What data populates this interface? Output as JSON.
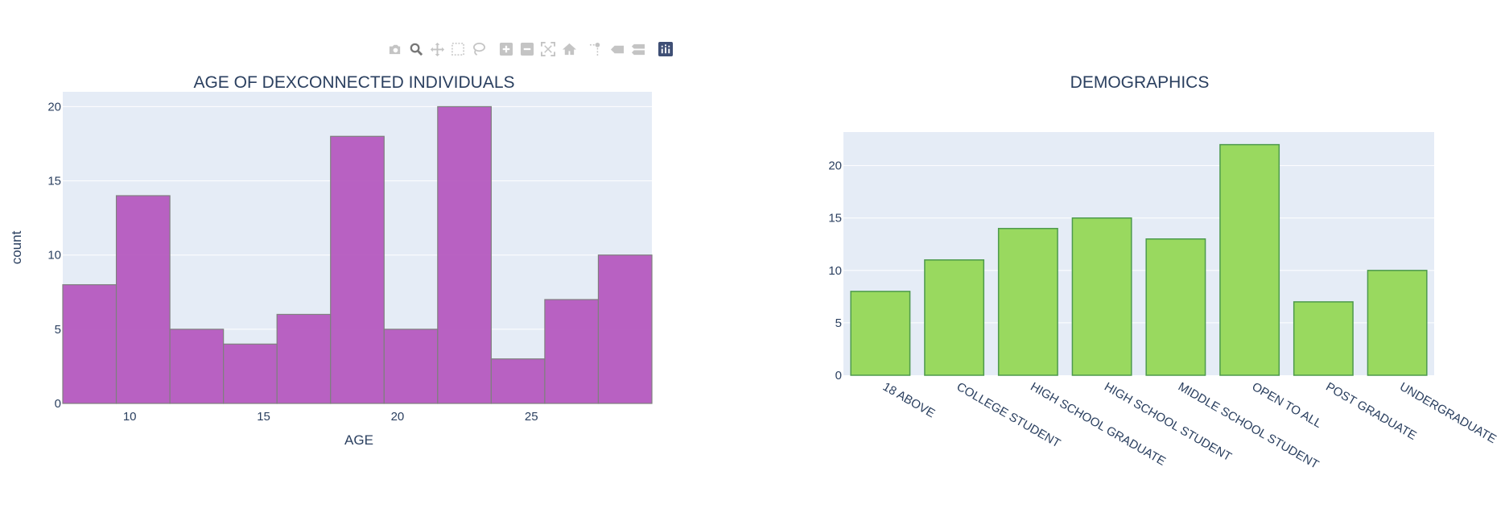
{
  "modebar": {
    "buttons": [
      {
        "name": "camera-icon",
        "label": "Download plot as a png"
      },
      {
        "name": "zoom-icon",
        "label": "Zoom",
        "active": true
      },
      {
        "name": "pan-icon",
        "label": "Pan"
      },
      {
        "name": "box-select-icon",
        "label": "Box Select"
      },
      {
        "name": "lasso-select-icon",
        "label": "Lasso Select"
      },
      {
        "name": "zoom-in-icon",
        "label": "Zoom in"
      },
      {
        "name": "zoom-out-icon",
        "label": "Zoom out"
      },
      {
        "name": "autoscale-icon",
        "label": "Autoscale"
      },
      {
        "name": "reset-axes-icon",
        "label": "Reset axes"
      },
      {
        "name": "spike-lines-icon",
        "label": "Toggle Spike Lines"
      },
      {
        "name": "hover-closest-icon",
        "label": "Show closest data on hover"
      },
      {
        "name": "hover-compare-icon",
        "label": "Compare data on hover"
      },
      {
        "name": "plotly-logo-icon",
        "label": "Produced with Plotly"
      }
    ],
    "colors": {
      "icon": "#c4c4c4",
      "active": "#777777",
      "logo": "#3f4f75"
    }
  },
  "chart_data": [
    {
      "type": "bar",
      "subtype": "histogram",
      "title": "AGE OF DEXCONNECTED INDIVIDUALS",
      "xlabel": "AGE",
      "ylabel": "count",
      "bin_edges": [
        7.5,
        9.5,
        11.5,
        13.5,
        15.5,
        17.5,
        19.5,
        21.5,
        23.5,
        25.5,
        27.5,
        29.5
      ],
      "values": [
        8,
        14,
        5,
        4,
        6,
        18,
        5,
        20,
        3,
        7,
        10
      ],
      "xlim": [
        7.5,
        29.5
      ],
      "ylim": [
        0,
        21
      ],
      "xticks": [
        10,
        15,
        20,
        25
      ],
      "yticks": [
        0,
        5,
        10,
        15,
        20
      ],
      "grid": true,
      "colors": {
        "fill": "#b55abf",
        "stroke": "#7f7f7f",
        "plot_bg": "#e5ecf6",
        "grid": "#ffffff",
        "text": "#2a3f5f"
      }
    },
    {
      "type": "bar",
      "title": "DEMOGRAPHICS",
      "xlabel": "",
      "ylabel": "",
      "categories": [
        "18 ABOVE",
        "COLLEGE STUDENT",
        "HIGH SCHOOL GRADUATE",
        "HIGH SCHOOL STUDENT",
        "MIDDLE SCHOOL STUDENT",
        "OPEN TO ALL",
        "POST GRADUATE",
        "UNDERGRADUATE"
      ],
      "values": [
        8,
        11,
        14,
        15,
        13,
        22,
        7,
        10
      ],
      "ylim": [
        0,
        23.2
      ],
      "yticks": [
        0,
        5,
        10,
        15,
        20
      ],
      "grid": true,
      "colors": {
        "fill": "#99d95f",
        "stroke": "#4d9a4d",
        "plot_bg": "#e5ecf6",
        "grid": "#ffffff",
        "text": "#2a3f5f"
      }
    }
  ]
}
